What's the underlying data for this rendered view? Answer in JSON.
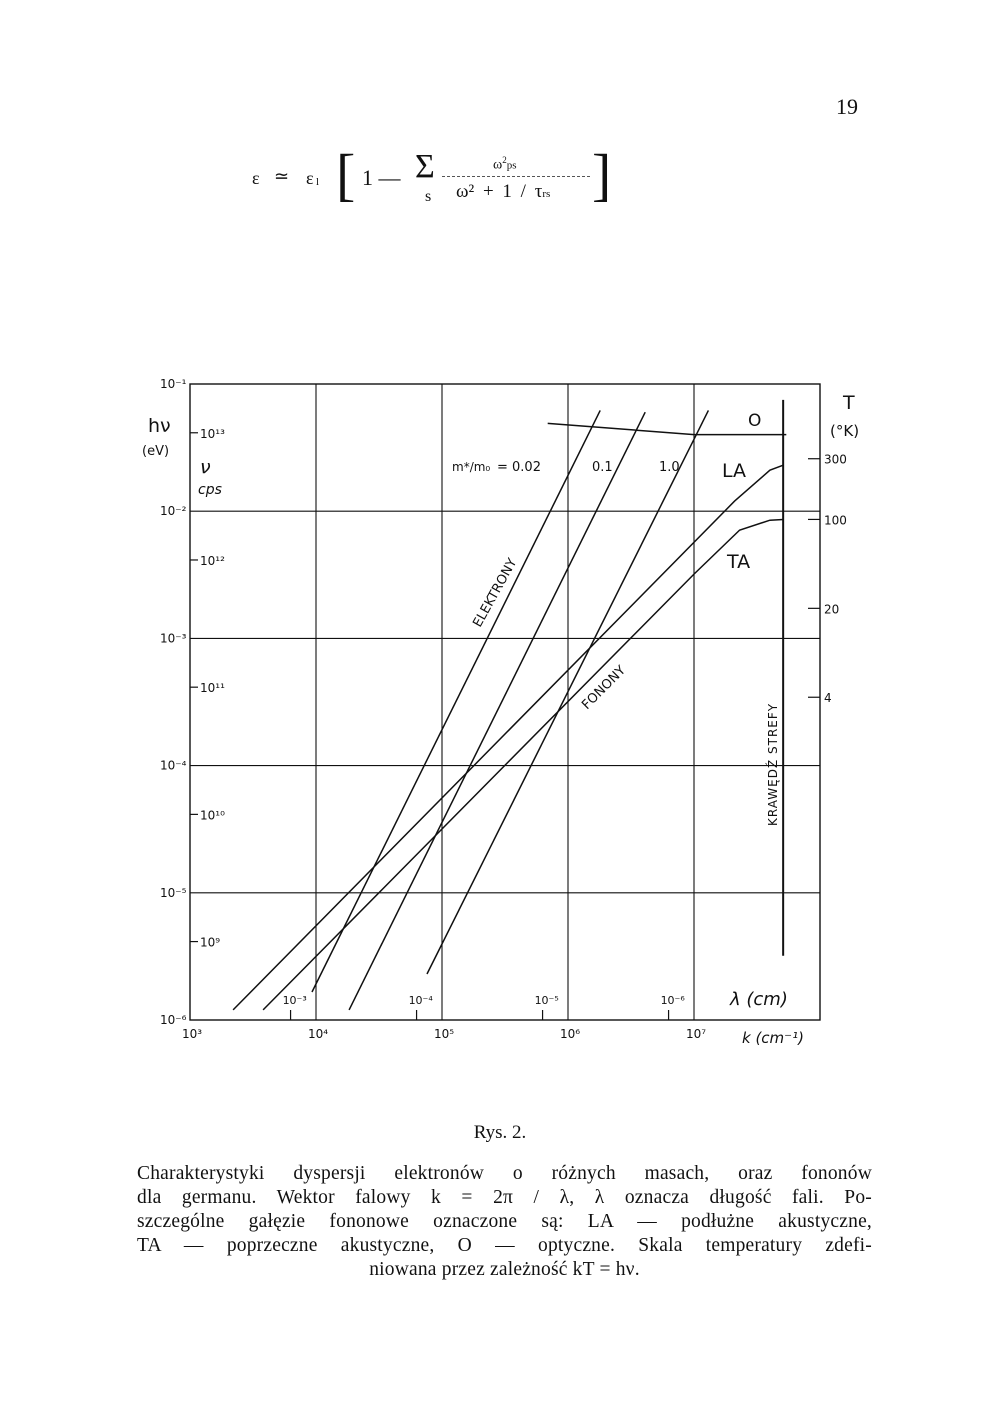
{
  "page_number": "19",
  "formula": {
    "lhs": "ε",
    "equals": "≃",
    "eps_l": "ε",
    "eps_l_sub": "l",
    "one_minus": "1 —",
    "sum": "Σ",
    "sum_index": "s",
    "numerator": "ω",
    "numerator_sup": "2",
    "numerator_sub": "ps",
    "denominator": "ω² + 1 / τ",
    "denominator_sub": "rs"
  },
  "chart_data": {
    "type": "line",
    "x_scale": "log",
    "y_scale": "log",
    "xlim": [
      1000,
      100000000
    ],
    "ylim": [
      1e-06,
      0.1
    ],
    "grid": true,
    "xlabel": "k (cm⁻¹)",
    "ylabel": "hν",
    "ylabel_unit": "(eV)",
    "y2label": "ν",
    "y2label_unit": "cps",
    "x2label": "λ (cm)",
    "y3label": "T",
    "y3label_unit": "(°K)",
    "x_ticks": [
      {
        "value": 1000,
        "label": "10³"
      },
      {
        "value": 10000,
        "label": "10⁴"
      },
      {
        "value": 100000,
        "label": "10⁵"
      },
      {
        "value": 1000000,
        "label": "10⁶"
      },
      {
        "value": 10000000,
        "label": "10⁷"
      }
    ],
    "y_ticks": [
      {
        "value": 0.1,
        "label": "10⁻¹"
      },
      {
        "value": 0.01,
        "label": "10⁻²"
      },
      {
        "value": 0.001,
        "label": "10⁻³"
      },
      {
        "value": 0.0001,
        "label": "10⁻⁴"
      },
      {
        "value": 1e-05,
        "label": "10⁻⁵"
      },
      {
        "value": 1e-06,
        "label": "10⁻⁶"
      }
    ],
    "nu_ticks": [
      {
        "value": 10000000000000.0,
        "label": "10¹³"
      },
      {
        "value": 1000000000000.0,
        "label": "10¹²"
      },
      {
        "value": 100000000000.0,
        "label": "10¹¹"
      },
      {
        "value": 10000000000.0,
        "label": "10¹⁰"
      },
      {
        "value": 1000000000.0,
        "label": "10⁹"
      }
    ],
    "lambda_ticks": [
      {
        "value": 0.001,
        "label": "10⁻³"
      },
      {
        "value": 0.0001,
        "label": "10⁻⁴"
      },
      {
        "value": 1e-05,
        "label": "10⁻⁵"
      },
      {
        "value": 1e-06,
        "label": "10⁻⁶"
      }
    ],
    "T_ticks": [
      {
        "value": 300,
        "label": "300"
      },
      {
        "value": 100,
        "label": "100"
      },
      {
        "value": 20,
        "label": "20"
      },
      {
        "value": 4,
        "label": "4"
      }
    ],
    "series": [
      {
        "name": "m*/m₀ = 0.02",
        "group": "electrons",
        "points": [
          [
            9300,
            1.66e-06
          ],
          [
            1800000.0,
            0.062
          ]
        ]
      },
      {
        "name": "0.1",
        "group": "electrons",
        "points": [
          [
            18300,
            1.2e-06
          ],
          [
            4100000.0,
            0.06
          ]
        ]
      },
      {
        "name": "1.0",
        "group": "electrons",
        "points": [
          [
            76000,
            2.3e-06
          ],
          [
            13000000.0,
            0.062
          ]
        ]
      },
      {
        "name": "LA",
        "group": "phonons",
        "points": [
          [
            2200,
            1.2e-06
          ],
          [
            21000000.0,
            0.012
          ],
          [
            40000000.0,
            0.021
          ],
          [
            51000000.0,
            0.023
          ]
        ]
      },
      {
        "name": "TA",
        "group": "phonons",
        "points": [
          [
            3800,
            1.2e-06
          ],
          [
            10000000.0,
            0.0032
          ],
          [
            23000000.0,
            0.0071
          ],
          [
            40000000.0,
            0.0085
          ],
          [
            51000000.0,
            0.0086
          ]
        ]
      },
      {
        "name": "O",
        "group": "phonons",
        "points": [
          [
            690000.0,
            0.049
          ],
          [
            10000000.0,
            0.04
          ],
          [
            54000000.0,
            0.04
          ]
        ]
      }
    ],
    "zone_edge": {
      "label": "KRAWĘDŹ STREFY",
      "k": 51000000.0,
      "y_range": [
        3.2e-06,
        0.075
      ]
    },
    "annotations": {
      "mass_ratio": "m*/m₀",
      "mass_ratio_num": "m*",
      "mass_ratio_den": "m₀",
      "mass_first": "= 0.02",
      "electrons": "ELEKTRONY",
      "phonons": "FONONY"
    }
  },
  "caption": {
    "title": "Rys. 2.",
    "lines": [
      "Charakterystyki dyspersji elektronów o różnych masach, oraz fononów",
      "dla germanu. Wektor falowy k = 2π / λ, λ oznacza długość fali. Po-",
      "szczególne gałęzie fononowe oznaczone są: LA — podłużne akustyczne,",
      "TA — poprzeczne akustyczne, O — optyczne. Skala temperatury zdefi-",
      "niowana przez zależność kT = hν."
    ]
  }
}
